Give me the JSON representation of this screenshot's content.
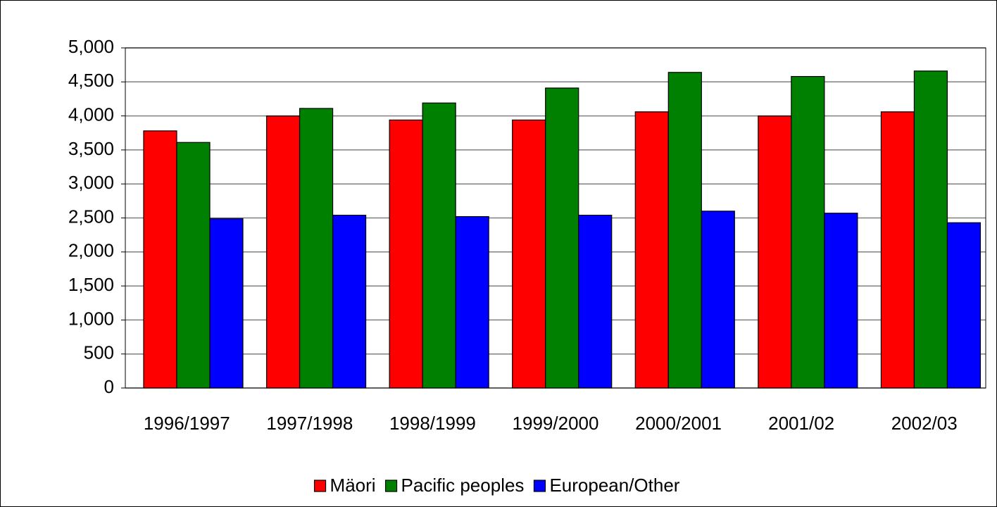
{
  "chart_data": {
    "type": "bar",
    "categories": [
      "1996/1997",
      "1997/1998",
      "1998/1999",
      "1999/2000",
      "2000/2001",
      "2001/02",
      "2002/03"
    ],
    "series": [
      {
        "name": "Mäori",
        "color": "#ff0000",
        "values": [
          3780,
          4000,
          3940,
          3940,
          4060,
          4000,
          4060
        ]
      },
      {
        "name": "Pacific peoples",
        "color": "#008000",
        "values": [
          3610,
          4110,
          4190,
          4410,
          4640,
          4580,
          4660
        ]
      },
      {
        "name": "European/Other",
        "color": "#0000ff",
        "values": [
          2490,
          2540,
          2520,
          2540,
          2600,
          2570,
          2430
        ]
      }
    ],
    "ylim": [
      0,
      5000
    ],
    "yticks": [
      0,
      500,
      {
        "value": 1000,
        "label": "1,000"
      },
      {
        "value": 1500,
        "label": "1,500"
      },
      {
        "value": 2000,
        "label": "2,000"
      },
      {
        "value": 2500,
        "label": "2,500"
      },
      {
        "value": 3000,
        "label": "3,000"
      },
      {
        "value": 3500,
        "label": "3,500"
      },
      {
        "value": 4000,
        "label": "4,000"
      },
      {
        "value": 4500,
        "label": "4,500"
      },
      {
        "value": 5000,
        "label": "5,000"
      }
    ],
    "grid": true,
    "legend": "bottom"
  }
}
